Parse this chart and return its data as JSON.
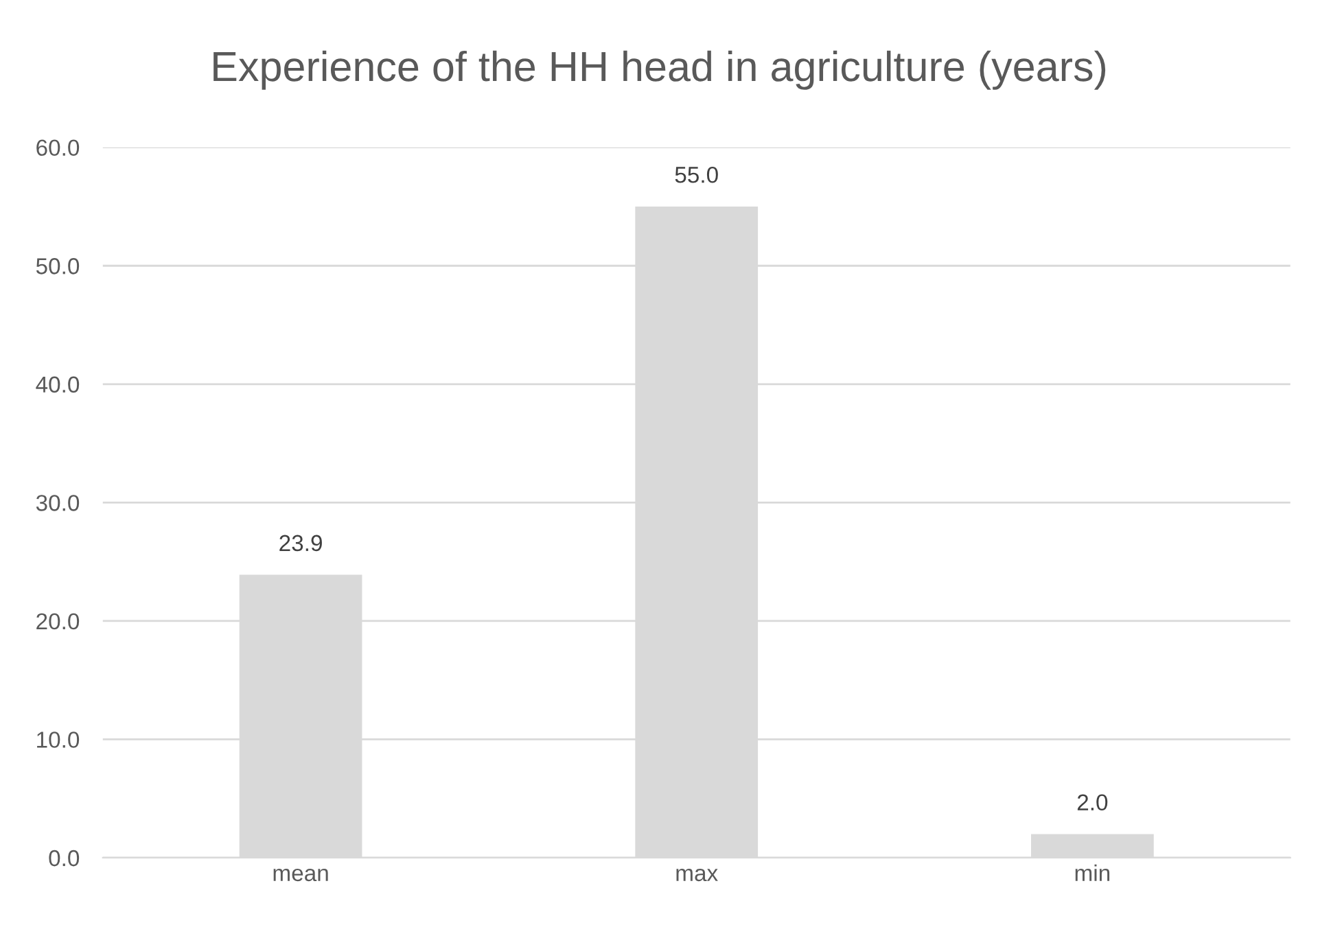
{
  "chart_data": {
    "type": "bar",
    "title": "Experience of the HH head in agriculture (years)",
    "categories": [
      "mean",
      "max",
      "min"
    ],
    "values": [
      23.9,
      55.0,
      2.0
    ],
    "color": "#d9d9d9",
    "value_labels": [
      "23.9",
      "55.0",
      "2.0"
    ],
    "ylim": [
      0,
      60
    ],
    "yticks": [
      {
        "value": 0,
        "label": "0.0"
      },
      {
        "value": 10,
        "label": "10.0"
      },
      {
        "value": 20,
        "label": "20.0"
      },
      {
        "value": 30,
        "label": "30.0"
      },
      {
        "value": 40,
        "label": "40.0"
      },
      {
        "value": 50,
        "label": "50.0"
      },
      {
        "value": 60,
        "label": "60.0"
      }
    ],
    "grid": "y",
    "legend": false
  }
}
